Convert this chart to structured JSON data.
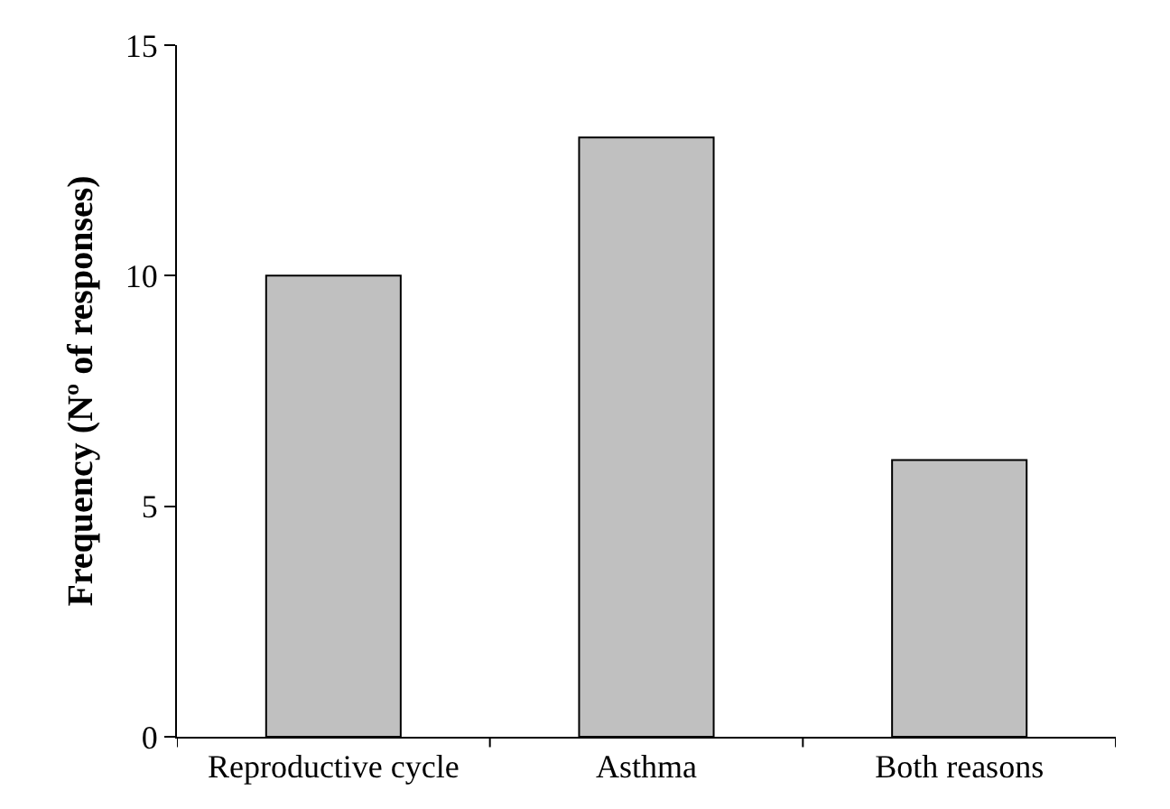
{
  "chart_data": {
    "type": "bar",
    "ylabel": "Frequency (Nº of responses)",
    "categories": [
      "Reproductive cycle",
      "Asthma",
      "Both reasons"
    ],
    "values": [
      10,
      13,
      6
    ],
    "color": "#c0c0c0",
    "ylim": [
      0,
      15
    ],
    "yticks": [
      0,
      5,
      10,
      15
    ]
  }
}
